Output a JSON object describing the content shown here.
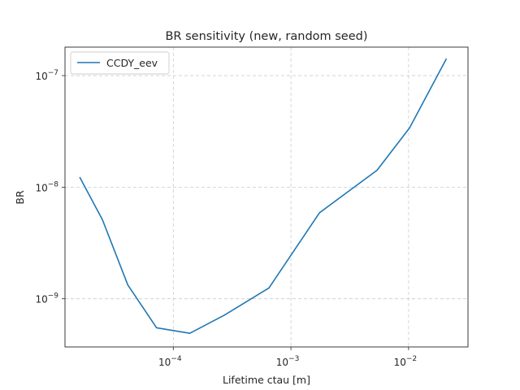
{
  "chart_data": {
    "type": "line",
    "title": "BR sensitivity (new, random seed)",
    "xlabel": "Lifetime ctau [m]",
    "ylabel": "BR",
    "xscale": "log",
    "yscale": "log",
    "xlim": [
      1.2e-05,
      0.032
    ],
    "ylim": [
      3.7e-10,
      1.8e-07
    ],
    "grid": true,
    "legend_position": "top-left",
    "x_ticks": [
      0.0001,
      0.001,
      0.01
    ],
    "x_tick_labels": [
      {
        "base": "10",
        "exp": "−4"
      },
      {
        "base": "10",
        "exp": "−3"
      },
      {
        "base": "10",
        "exp": "−2"
      }
    ],
    "y_ticks": [
      1e-09,
      1e-08,
      1e-07
    ],
    "y_tick_labels": [
      {
        "base": "10",
        "exp": "−9"
      },
      {
        "base": "10",
        "exp": "−8"
      },
      {
        "base": "10",
        "exp": "−7"
      }
    ],
    "series": [
      {
        "name": "CCDY_eev",
        "color": "#1f77b4",
        "x": [
          1.6e-05,
          2.5e-05,
          4.1e-05,
          7.2e-05,
          0.000138,
          0.00027,
          0.00065,
          0.00175,
          0.0054,
          0.0102,
          0.021
        ],
        "y": [
          1.23e-08,
          5.1e-09,
          1.33e-09,
          5.5e-10,
          4.9e-10,
          7.1e-10,
          1.25e-09,
          5.9e-09,
          1.42e-08,
          3.4e-08,
          1.42e-07
        ]
      }
    ]
  }
}
